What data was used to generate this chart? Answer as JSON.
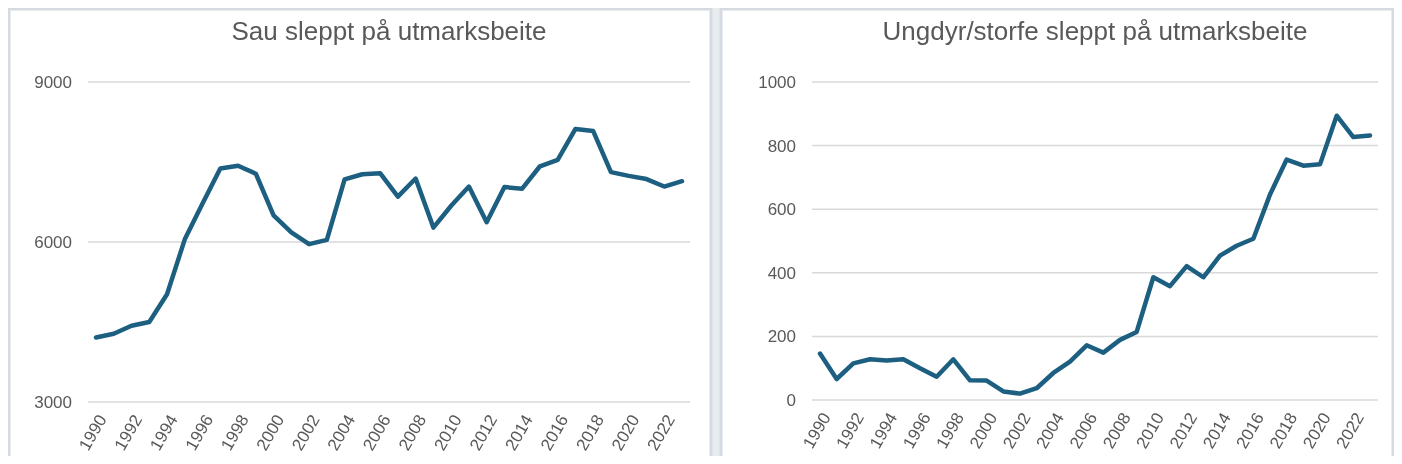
{
  "chart_data": [
    {
      "type": "line",
      "title": "Sau sleppt på utmarksbeite",
      "categories": [
        "1990",
        null,
        "1992",
        null,
        "1994",
        null,
        "1996",
        null,
        "1998",
        null,
        "2000",
        null,
        "2002",
        null,
        "2004",
        null,
        "2006",
        null,
        "2008",
        null,
        "2010",
        null,
        "2012",
        null,
        "2014",
        null,
        "2016",
        null,
        "2018",
        null,
        "2020",
        null,
        "2022",
        null
      ],
      "series": [
        {
          "color": "#1d5f80",
          "values": [
            4210,
            4280,
            4430,
            4500,
            5020,
            6050,
            6720,
            7380,
            7430,
            7280,
            6500,
            6180,
            5960,
            6040,
            7175,
            7270,
            7290,
            6850,
            7190,
            6270,
            6680,
            7040,
            6370,
            7030,
            7000,
            7420,
            7540,
            8120,
            8080,
            7310,
            7240,
            7180,
            7040,
            7140
          ]
        }
      ],
      "ylim": [
        3000,
        9000
      ],
      "yticks": [
        3000,
        6000,
        9000
      ],
      "grid": "y",
      "marker": "none",
      "line_style": "solid"
    },
    {
      "type": "line",
      "title": "Ungdyr/storfe sleppt på utmarksbeite",
      "categories": [
        "1990",
        null,
        "1992",
        null,
        "1994",
        null,
        "1996",
        null,
        "1998",
        null,
        "2000",
        null,
        "2002",
        null,
        "2004",
        null,
        "2006",
        null,
        "2008",
        null,
        "2010",
        null,
        "2012",
        null,
        "2014",
        null,
        "2016",
        null,
        "2018",
        null,
        "2020",
        null,
        "2022",
        null
      ],
      "series": [
        {
          "color": "#1d5f80",
          "values": [
            146,
            66,
            115,
            128,
            124,
            128,
            100,
            73,
            128,
            62,
            61,
            27,
            20,
            37,
            85,
            121,
            172,
            149,
            189,
            214,
            386,
            358,
            421,
            386,
            454,
            485,
            507,
            646,
            756,
            737,
            741,
            894,
            827,
            832
          ]
        }
      ],
      "ylim": [
        0,
        1000
      ],
      "yticks": [
        0,
        200,
        400,
        600,
        800,
        1000
      ],
      "grid": "y",
      "marker": "none",
      "line_style": "solid"
    }
  ]
}
